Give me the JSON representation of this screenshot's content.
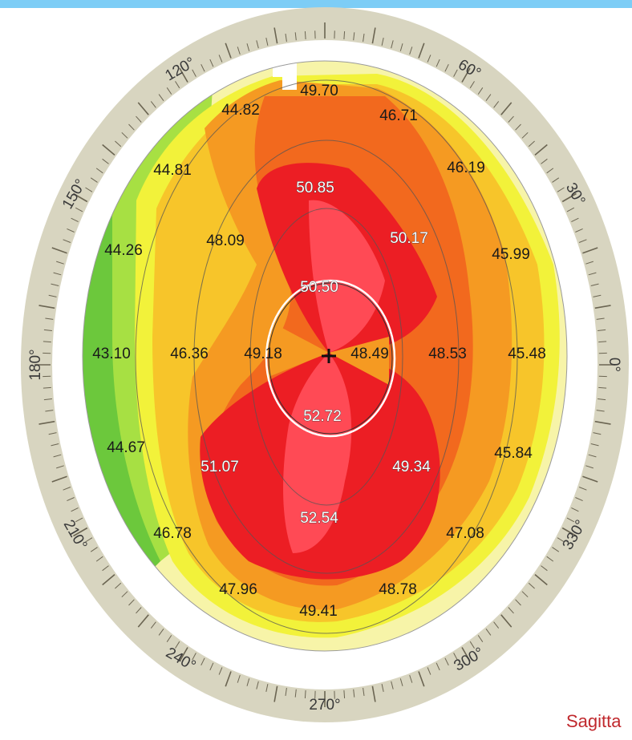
{
  "colors": {
    "frame": "#7dcdf6",
    "ring": "#d8d5c0",
    "tick": "#6b6552",
    "caption": "#c0282d",
    "scale": [
      "#6cc83c",
      "#a7e043",
      "#f2f23a",
      "#f7c52a",
      "#f59a22",
      "#f2691e",
      "#ec1e24",
      "#ff4a55"
    ]
  },
  "ring_labels": [
    {
      "deg": 0,
      "text": "0°"
    },
    {
      "deg": 30,
      "text": "30°"
    },
    {
      "deg": 60,
      "text": "60°"
    },
    {
      "deg": 120,
      "text": "120°"
    },
    {
      "deg": 150,
      "text": "150°"
    },
    {
      "deg": 180,
      "text": "180°"
    },
    {
      "deg": 210,
      "text": "210°"
    },
    {
      "deg": 240,
      "text": "240°"
    },
    {
      "deg": 270,
      "text": "270°"
    },
    {
      "deg": 300,
      "text": "300°"
    },
    {
      "deg": 330,
      "text": "330°"
    }
  ],
  "readings": [
    {
      "name": "reading-superior-center",
      "value": "49.70",
      "bright": false
    },
    {
      "name": "reading-superior-left",
      "value": "44.82",
      "bright": false
    },
    {
      "name": "reading-superior-right",
      "value": "46.71",
      "bright": false
    },
    {
      "name": "reading-upper-left-outer",
      "value": "44.81",
      "bright": false
    },
    {
      "name": "reading-upper-center",
      "value": "50.85",
      "bright": true
    },
    {
      "name": "reading-upper-right-outer",
      "value": "46.19",
      "bright": false
    },
    {
      "name": "reading-left-upper-outer",
      "value": "44.26",
      "bright": false
    },
    {
      "name": "reading-upper-left-mid",
      "value": "48.09",
      "bright": false
    },
    {
      "name": "reading-upper-right-mid",
      "value": "50.17",
      "bright": true
    },
    {
      "name": "reading-right-upper-outer",
      "value": "45.99",
      "bright": false
    },
    {
      "name": "reading-upper-inner",
      "value": "50.50",
      "bright": true
    },
    {
      "name": "reading-left-outer",
      "value": "43.10",
      "bright": false
    },
    {
      "name": "reading-left-mid",
      "value": "46.36",
      "bright": false
    },
    {
      "name": "reading-left-inner",
      "value": "49.18",
      "bright": false
    },
    {
      "name": "reading-right-inner",
      "value": "48.49",
      "bright": false
    },
    {
      "name": "reading-right-mid",
      "value": "48.53",
      "bright": false
    },
    {
      "name": "reading-right-outer",
      "value": "45.48",
      "bright": false
    },
    {
      "name": "reading-lower-inner",
      "value": "52.72",
      "bright": true
    },
    {
      "name": "reading-left-lower-outer",
      "value": "44.67",
      "bright": false
    },
    {
      "name": "reading-lower-left-mid",
      "value": "51.07",
      "bright": true
    },
    {
      "name": "reading-lower-right-mid",
      "value": "49.34",
      "bright": true
    },
    {
      "name": "reading-right-lower-outer",
      "value": "45.84",
      "bright": false
    },
    {
      "name": "reading-lower-center",
      "value": "52.54",
      "bright": true
    },
    {
      "name": "reading-lower-left-outer",
      "value": "46.78",
      "bright": false
    },
    {
      "name": "reading-lower-right-outer",
      "value": "47.08",
      "bright": false
    },
    {
      "name": "reading-inferior-left",
      "value": "47.96",
      "bright": false
    },
    {
      "name": "reading-inferior-right",
      "value": "48.78",
      "bright": false
    },
    {
      "name": "reading-inferior-center",
      "value": "49.41",
      "bright": false
    }
  ],
  "caption": "Sagitta"
}
